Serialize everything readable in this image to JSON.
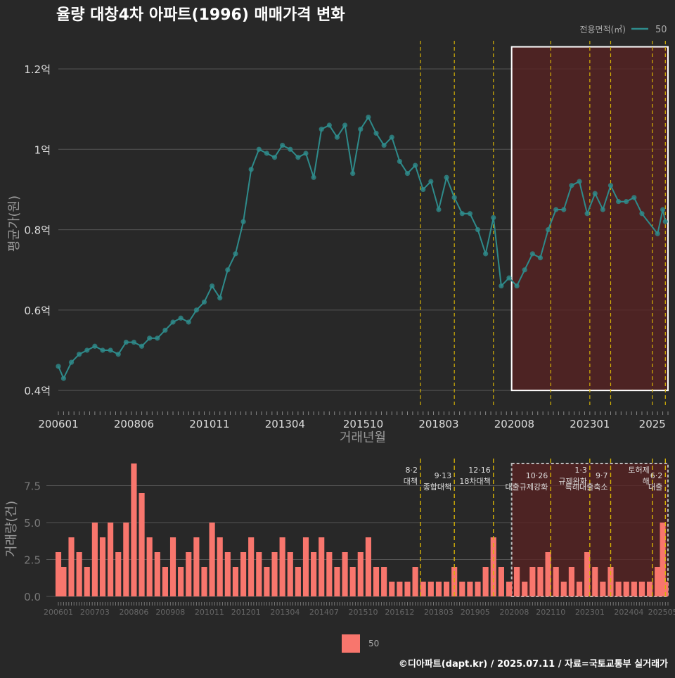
{
  "title": "율량 대창4차 아파트(1996) 매매가격 변화",
  "footer": "©디아파트(dapt.kr) / 2025.07.11 / 자료=국토교통부 실거래가",
  "legend": {
    "title": "전용면적(㎡)",
    "line_label": "50",
    "bar_label": "50"
  },
  "colors": {
    "background": "#282828",
    "line": "#2e8b8b",
    "bar": "#f8766d",
    "policy_line": "#d4b106",
    "highlight": "#5a2121",
    "grid": "#555555"
  },
  "chart_data": [
    {
      "type": "line",
      "title": "율량 대창4차 아파트(1996) 매매가격 변화",
      "xlabel": "거래년월",
      "ylabel": "평균가(원)",
      "xlim": [
        "2006-01",
        "2025-07"
      ],
      "ylim": [
        0.36,
        1.27
      ],
      "y_unit": "억",
      "y_ticks": [
        {
          "value": 0.4,
          "label": "0.4억"
        },
        {
          "value": 0.6,
          "label": "0.6억"
        },
        {
          "value": 0.8,
          "label": "0.8억"
        },
        {
          "value": 1.0,
          "label": "1억"
        },
        {
          "value": 1.2,
          "label": "1.2억"
        }
      ],
      "x_tick_labels": [
        "200601",
        "200806",
        "201011",
        "201304",
        "201510",
        "201803",
        "202008",
        "202301",
        "2025"
      ],
      "policy_dates": [
        "2017-08",
        "2018-09",
        "2019-12",
        "2021-10",
        "2023-01",
        "2023-09",
        "2025-01",
        "2025-06"
      ],
      "highlight_range": [
        "2020-07",
        "2025-07"
      ],
      "series": [
        {
          "name": "50",
          "values": [
            [
              "2006-01",
              0.46
            ],
            [
              "2006-03",
              0.43
            ],
            [
              "2006-06",
              0.47
            ],
            [
              "2006-09",
              0.49
            ],
            [
              "2006-12",
              0.5
            ],
            [
              "2007-03",
              0.51
            ],
            [
              "2007-06",
              0.5
            ],
            [
              "2007-09",
              0.5
            ],
            [
              "2007-12",
              0.49
            ],
            [
              "2008-03",
              0.52
            ],
            [
              "2008-06",
              0.52
            ],
            [
              "2008-09",
              0.51
            ],
            [
              "2008-12",
              0.53
            ],
            [
              "2009-03",
              0.53
            ],
            [
              "2009-06",
              0.55
            ],
            [
              "2009-09",
              0.57
            ],
            [
              "2009-12",
              0.58
            ],
            [
              "2010-03",
              0.57
            ],
            [
              "2010-06",
              0.6
            ],
            [
              "2010-09",
              0.62
            ],
            [
              "2010-12",
              0.66
            ],
            [
              "2011-03",
              0.63
            ],
            [
              "2011-06",
              0.7
            ],
            [
              "2011-09",
              0.74
            ],
            [
              "2011-12",
              0.82
            ],
            [
              "2012-03",
              0.95
            ],
            [
              "2012-06",
              1.0
            ],
            [
              "2012-09",
              0.99
            ],
            [
              "2012-12",
              0.98
            ],
            [
              "2013-03",
              1.01
            ],
            [
              "2013-06",
              1.0
            ],
            [
              "2013-09",
              0.98
            ],
            [
              "2013-12",
              0.99
            ],
            [
              "2014-03",
              0.93
            ],
            [
              "2014-06",
              1.05
            ],
            [
              "2014-09",
              1.06
            ],
            [
              "2014-12",
              1.03
            ],
            [
              "2015-03",
              1.06
            ],
            [
              "2015-06",
              0.94
            ],
            [
              "2015-09",
              1.05
            ],
            [
              "2015-12",
              1.08
            ],
            [
              "2016-03",
              1.04
            ],
            [
              "2016-06",
              1.01
            ],
            [
              "2016-09",
              1.03
            ],
            [
              "2016-12",
              0.97
            ],
            [
              "2017-03",
              0.94
            ],
            [
              "2017-06",
              0.96
            ],
            [
              "2017-09",
              0.9
            ],
            [
              "2017-12",
              0.92
            ],
            [
              "2018-03",
              0.85
            ],
            [
              "2018-06",
              0.93
            ],
            [
              "2018-09",
              0.88
            ],
            [
              "2018-12",
              0.84
            ],
            [
              "2019-03",
              0.84
            ],
            [
              "2019-06",
              0.8
            ],
            [
              "2019-09",
              0.74
            ],
            [
              "2019-12",
              0.83
            ],
            [
              "2020-03",
              0.66
            ],
            [
              "2020-06",
              0.68
            ],
            [
              "2020-09",
              0.66
            ],
            [
              "2020-12",
              0.7
            ],
            [
              "2021-03",
              0.74
            ],
            [
              "2021-06",
              0.73
            ],
            [
              "2021-09",
              0.8
            ],
            [
              "2021-12",
              0.85
            ],
            [
              "2022-03",
              0.85
            ],
            [
              "2022-06",
              0.91
            ],
            [
              "2022-09",
              0.92
            ],
            [
              "2022-12",
              0.84
            ],
            [
              "2023-03",
              0.89
            ],
            [
              "2023-06",
              0.85
            ],
            [
              "2023-09",
              0.91
            ],
            [
              "2023-12",
              0.87
            ],
            [
              "2024-03",
              0.87
            ],
            [
              "2024-06",
              0.88
            ],
            [
              "2024-09",
              0.84
            ],
            [
              "2025-03",
              0.79
            ],
            [
              "2025-05",
              0.85
            ],
            [
              "2025-06",
              0.82
            ]
          ]
        }
      ]
    },
    {
      "type": "bar",
      "xlabel": "",
      "ylabel": "거래량(건)",
      "ylim": [
        -0.3,
        9.3
      ],
      "y_ticks": [
        {
          "value": 0,
          "label": "0.0"
        },
        {
          "value": 2.5,
          "label": "2.5"
        },
        {
          "value": 5,
          "label": "5.0"
        },
        {
          "value": 7.5,
          "label": "7.5"
        }
      ],
      "x_tick_labels": [
        "200601",
        "200703",
        "200806",
        "200908",
        "201011",
        "201201",
        "201304",
        "201407",
        "201510",
        "201612",
        "201803",
        "201905",
        "202008",
        "202110",
        "202301",
        "202404",
        "202505"
      ],
      "annotations": [
        {
          "date": "2017-08",
          "label": "8·2 대책"
        },
        {
          "date": "2018-09",
          "label": "9·13 종합대책"
        },
        {
          "date": "2019-12",
          "label": "12·16 18차대책"
        },
        {
          "date": "2021-10",
          "label": "10·26 대출규제강화"
        },
        {
          "date": "2023-01",
          "label": "1·3 규제완화"
        },
        {
          "date": "2023-09",
          "label": "9·7 특례대출축소"
        },
        {
          "date": "2025-01",
          "label": "토허제 해"
        },
        {
          "date": "2025-06",
          "label": "6·2 대출"
        }
      ],
      "series": [
        {
          "name": "50",
          "values": [
            [
              "2006-01",
              3
            ],
            [
              "2006-03",
              2
            ],
            [
              "2006-06",
              4
            ],
            [
              "2006-09",
              3
            ],
            [
              "2006-12",
              2
            ],
            [
              "2007-03",
              5
            ],
            [
              "2007-06",
              4
            ],
            [
              "2007-09",
              5
            ],
            [
              "2007-12",
              3
            ],
            [
              "2008-03",
              5
            ],
            [
              "2008-06",
              9
            ],
            [
              "2008-09",
              7
            ],
            [
              "2008-12",
              4
            ],
            [
              "2009-03",
              3
            ],
            [
              "2009-06",
              2
            ],
            [
              "2009-09",
              4
            ],
            [
              "2009-12",
              2
            ],
            [
              "2010-03",
              3
            ],
            [
              "2010-06",
              4
            ],
            [
              "2010-09",
              2
            ],
            [
              "2010-12",
              5
            ],
            [
              "2011-03",
              4
            ],
            [
              "2011-06",
              3
            ],
            [
              "2011-09",
              2
            ],
            [
              "2011-12",
              3
            ],
            [
              "2012-03",
              4
            ],
            [
              "2012-06",
              3
            ],
            [
              "2012-09",
              2
            ],
            [
              "2012-12",
              3
            ],
            [
              "2013-03",
              4
            ],
            [
              "2013-06",
              3
            ],
            [
              "2013-09",
              2
            ],
            [
              "2013-12",
              4
            ],
            [
              "2014-03",
              3
            ],
            [
              "2014-06",
              4
            ],
            [
              "2014-09",
              3
            ],
            [
              "2014-12",
              2
            ],
            [
              "2015-03",
              3
            ],
            [
              "2015-06",
              2
            ],
            [
              "2015-09",
              3
            ],
            [
              "2015-12",
              4
            ],
            [
              "2016-03",
              2
            ],
            [
              "2016-06",
              2
            ],
            [
              "2016-09",
              1
            ],
            [
              "2016-12",
              1
            ],
            [
              "2017-03",
              1
            ],
            [
              "2017-06",
              2
            ],
            [
              "2017-09",
              1
            ],
            [
              "2017-12",
              1
            ],
            [
              "2018-03",
              1
            ],
            [
              "2018-06",
              1
            ],
            [
              "2018-09",
              2
            ],
            [
              "2018-12",
              1
            ],
            [
              "2019-03",
              1
            ],
            [
              "2019-06",
              1
            ],
            [
              "2019-09",
              2
            ],
            [
              "2019-12",
              4
            ],
            [
              "2020-03",
              2
            ],
            [
              "2020-06",
              1
            ],
            [
              "2020-09",
              2
            ],
            [
              "2020-12",
              1
            ],
            [
              "2021-03",
              2
            ],
            [
              "2021-06",
              2
            ],
            [
              "2021-09",
              3
            ],
            [
              "2021-12",
              2
            ],
            [
              "2022-03",
              1
            ],
            [
              "2022-06",
              2
            ],
            [
              "2022-09",
              1
            ],
            [
              "2022-12",
              3
            ],
            [
              "2023-03",
              2
            ],
            [
              "2023-06",
              1
            ],
            [
              "2023-09",
              2
            ],
            [
              "2023-12",
              1
            ],
            [
              "2024-03",
              1
            ],
            [
              "2024-06",
              1
            ],
            [
              "2024-09",
              1
            ],
            [
              "2024-12",
              1
            ],
            [
              "2025-03",
              2
            ],
            [
              "2025-05",
              5
            ],
            [
              "2025-06",
              1
            ]
          ]
        }
      ]
    }
  ]
}
